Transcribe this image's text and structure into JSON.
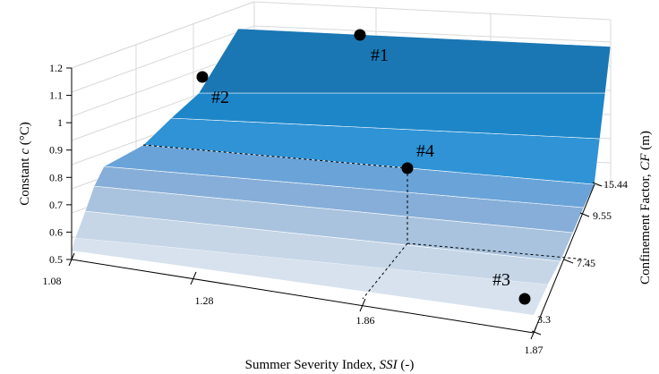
{
  "chart_data": {
    "type": "surface",
    "z_axis": {
      "label": "Constant ",
      "label_var": "c",
      "label_unit": " (°C)",
      "ticks": [
        "1.2",
        "1.1",
        "1",
        "0.9",
        "0.8",
        "0.7",
        "0.6",
        "0.5"
      ]
    },
    "x_axis": {
      "label": "Summer Severity Index, ",
      "label_var": "SSI",
      "label_unit": " (-)",
      "ticks": [
        "1.08",
        "1.28",
        "1.86",
        "1.87"
      ]
    },
    "y_axis": {
      "label": "Confinement Factor, ",
      "label_var": "CF",
      "label_unit": " (m)",
      "ticks": [
        "15.44",
        "9.55",
        "7.45",
        "3.3"
      ]
    },
    "bands": [
      {
        "range": [
          0.5,
          0.6
        ],
        "color": "#c6d6e7"
      },
      {
        "range": [
          0.6,
          0.7
        ],
        "color": "#a9c3de"
      },
      {
        "range": [
          0.7,
          0.8
        ],
        "color": "#86aed8"
      },
      {
        "range": [
          0.8,
          0.9
        ],
        "color": "#6aa3d8"
      },
      {
        "range": [
          0.9,
          1.0
        ],
        "color": "#2f93d6"
      },
      {
        "range": [
          1.0,
          1.1
        ],
        "color": "#1d86c8"
      },
      {
        "range": [
          1.1,
          1.2
        ],
        "color": "#1a77b4"
      }
    ],
    "points": [
      {
        "label": "#1",
        "ssi": 1.08,
        "cf": 15.44,
        "c": 1.2
      },
      {
        "label": "#2",
        "ssi": 1.08,
        "cf": 3.3,
        "c": 1.12
      },
      {
        "label": "#3",
        "ssi": 1.87,
        "cf": 3.3,
        "c": 0.5
      },
      {
        "label": "#4",
        "ssi": 1.86,
        "cf": 7.45,
        "c": 0.88
      }
    ]
  }
}
